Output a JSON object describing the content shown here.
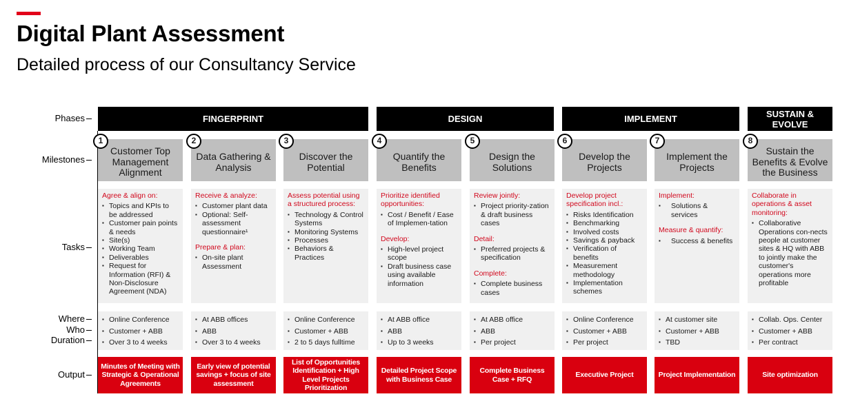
{
  "header": {
    "title": "Digital Plant Assessment",
    "subtitle": "Detailed process of our Consultancy Service",
    "accent_color": "#e2001a"
  },
  "row_labels": {
    "phases": "Phases",
    "milestones": "Milestones",
    "tasks": "Tasks",
    "where": "Where",
    "who": "Who",
    "duration": "Duration",
    "output": "Output"
  },
  "phases": [
    {
      "label": "FINGERPRINT"
    },
    {
      "label": "DESIGN"
    },
    {
      "label": "IMPLEMENT"
    },
    {
      "label": "SUSTAIN & EVOLVE"
    }
  ],
  "columns": [
    {
      "number": "1",
      "milestone": "Customer Top Management Alignment",
      "tasks": [
        {
          "header": "Agree & align on:",
          "items": [
            "Topics and KPIs to be addressed",
            "Customer pain points & needs",
            "Site(s)",
            "Working Team",
            "Deliverables",
            "Request for Information (RFI) & Non-Disclosure Agreement (NDA)"
          ]
        }
      ],
      "where": "Online Conference",
      "who": "Customer + ABB",
      "duration": "Over 3 to 4 weeks",
      "output": "Minutes of Meeting with Strategic & Operational Agreements"
    },
    {
      "number": "2",
      "milestone": "Data Gathering & Analysis",
      "tasks": [
        {
          "header": "Receive & analyze:",
          "items": [
            "Customer plant data",
            "Optional: Self-assessment questionnaire¹"
          ]
        },
        {
          "header": "Prepare & plan:",
          "items": [
            "On-site plant Assessment"
          ]
        }
      ],
      "where": "At ABB offices",
      "who": "ABB",
      "duration": "Over 3 to 4 weeks",
      "output": "Early view of potential savings + focus of site assessment"
    },
    {
      "number": "3",
      "milestone": "Discover the Potential",
      "tasks": [
        {
          "header": "Assess potential using a structured process:",
          "items": [
            "Technology & Control Systems",
            "Monitoring Systems",
            "Processes",
            "Behaviors & Practices"
          ]
        }
      ],
      "where": "Online Conference",
      "who": "Customer + ABB",
      "duration": "2  to 5 days fulltime",
      "output": "List of Opportunities Identification + High Level Projects Prioritization"
    },
    {
      "number": "4",
      "milestone": "Quantify the Benefits",
      "tasks": [
        {
          "header": "Prioritize identified opportunities:",
          "items": [
            "Cost / Benefit / Ease of Implemen-tation"
          ]
        },
        {
          "header": "Develop:",
          "items": [
            "High-level project scope",
            "Draft business case using available information"
          ]
        }
      ],
      "where": "At ABB office",
      "who": "ABB",
      "duration": "Up to 3 weeks",
      "output": "Detailed Project Scope with Business Case"
    },
    {
      "number": "5",
      "milestone": "Design the Solutions",
      "tasks": [
        {
          "header": "Review jointly:",
          "items": [
            "Project priority-zation & draft business cases"
          ]
        },
        {
          "header": "Detail:",
          "items": [
            "Preferred projects & specification"
          ]
        },
        {
          "header": "Complete:",
          "items": [
            "Complete business cases"
          ]
        }
      ],
      "where": "At ABB office",
      "who": "ABB",
      "duration": "Per project",
      "output": "Complete Business Case + RFQ"
    },
    {
      "number": "6",
      "milestone": "Develop the Projects",
      "tasks": [
        {
          "header": "Develop project specification incl.:",
          "items": [
            "Risks Identification",
            "Benchmarking",
            "Involved costs",
            "Savings & payback",
            "Verification of benefits",
            "Measurement methodology",
            "Implementation schemes"
          ]
        }
      ],
      "where": "Online Conference",
      "who": "Customer + ABB",
      "duration": "Per project",
      "output": "Executive Project"
    },
    {
      "number": "7",
      "milestone": "Implement the Projects",
      "tasks": [
        {
          "header": "Implement:",
          "items": [
            "Solutions & services"
          ]
        },
        {
          "header": "Measure  & quantify:",
          "items": [
            "Success & benefits"
          ]
        }
      ],
      "where": "At customer site",
      "who": "Customer + ABB",
      "duration": "TBD",
      "output": "Project Implementation"
    },
    {
      "number": "8",
      "milestone": "Sustain the Benefits & Evolve the Business",
      "tasks": [
        {
          "header": "Collaborate in operations & asset monitoring:",
          "items": [
            "Collaborative Operations con-nects people at customer sites & HQ with ABB to jointly make the customer's operations more profitable"
          ]
        }
      ],
      "where": "Collab. Ops. Center",
      "who": "Customer + ABB",
      "duration": "Per contract",
      "output": "Site optimization"
    }
  ]
}
